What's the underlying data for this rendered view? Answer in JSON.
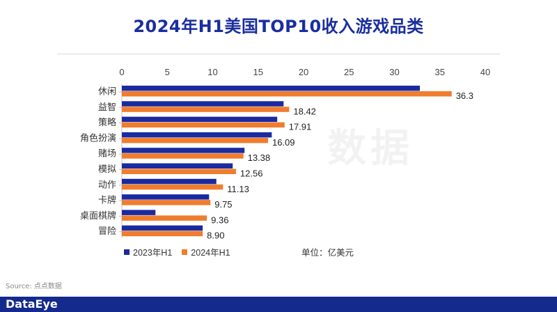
{
  "title": "2024年H1美国TOP10收入游戏品类",
  "unit_label": "单位：亿美元",
  "source": "Source: 点点数据",
  "brand": "DataEye",
  "watermark": "数据",
  "colors": {
    "series_2023": "#1a2aa0",
    "series_2024": "#f07c2e",
    "footer": "#142a8c"
  },
  "legend": [
    {
      "label": "2023年H1",
      "color": "#1a2aa0"
    },
    {
      "label": "2024年H1",
      "color": "#f07c2e"
    }
  ],
  "chart_data": {
    "type": "bar",
    "orientation": "horizontal",
    "categories": [
      "休闲",
      "益智",
      "策略",
      "角色扮演",
      "赌场",
      "模拟",
      "动作",
      "卡牌",
      "桌面棋牌",
      "冒险"
    ],
    "series": [
      {
        "name": "2023年H1",
        "values": [
          32.8,
          17.8,
          17.1,
          16.5,
          13.5,
          12.2,
          10.4,
          9.6,
          3.7,
          8.9
        ]
      },
      {
        "name": "2024年H1",
        "values": [
          36.3,
          18.42,
          17.91,
          16.09,
          13.38,
          12.56,
          11.13,
          9.75,
          9.36,
          8.9
        ],
        "labels": [
          "36.3",
          "18.42",
          "17.91",
          "16.09",
          "13.38",
          "12.56",
          "11.13",
          "9.75",
          "9.36",
          "8.90"
        ]
      }
    ],
    "xlim": [
      0,
      40
    ],
    "ticks": [
      0,
      5,
      10,
      15,
      20,
      25,
      30,
      35,
      40
    ],
    "axis_position": "top",
    "grid": false,
    "legend_position": "bottom-left"
  }
}
